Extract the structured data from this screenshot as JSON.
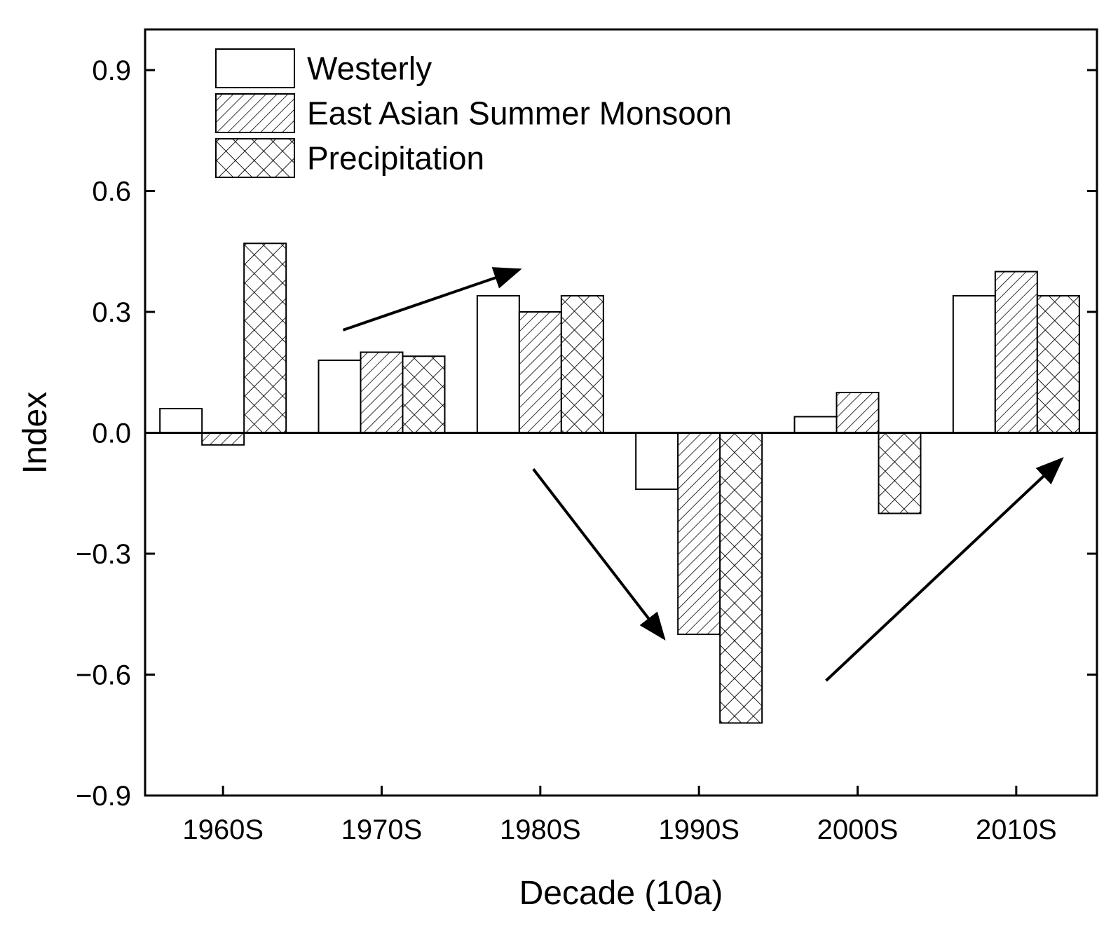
{
  "chart_data": {
    "type": "bar",
    "xlabel": "Decade (10a)",
    "ylabel": "Index",
    "categories": [
      "1960S",
      "1970S",
      "1980S",
      "1990S",
      "2000S",
      "2010S"
    ],
    "ylim": [
      -0.9,
      1.0
    ],
    "yticks": [
      -0.9,
      -0.6,
      -0.3,
      0.0,
      0.3,
      0.6,
      0.9
    ],
    "ytick_labels": [
      "−0.9",
      "−0.6",
      "−0.3",
      "0.0",
      "0.3",
      "0.6",
      "0.9"
    ],
    "grid": false,
    "legend_position": "top-left",
    "series": [
      {
        "name": "Westerly",
        "pattern": "blank",
        "values": [
          0.06,
          0.18,
          0.34,
          -0.14,
          0.04,
          0.34
        ]
      },
      {
        "name": "East Asian Summer Monsoon",
        "pattern": "diagonal-hatch",
        "values": [
          -0.03,
          0.2,
          0.3,
          -0.5,
          0.1,
          0.4
        ]
      },
      {
        "name": "Precipitation",
        "pattern": "cross-hatch",
        "values": [
          0.47,
          0.19,
          0.34,
          -0.72,
          -0.2,
          0.34
        ]
      }
    ],
    "annotations": [
      {
        "type": "arrow",
        "direction": "up",
        "from_category": "1970S",
        "to_category": "1980S"
      },
      {
        "type": "arrow",
        "direction": "down",
        "from_category": "1980S",
        "to_category": "1990S"
      },
      {
        "type": "arrow",
        "direction": "up",
        "from_category": "2000S",
        "to_category": "2010S"
      }
    ],
    "colors": {
      "stroke": "#000000",
      "fill": "#ffffff"
    }
  }
}
